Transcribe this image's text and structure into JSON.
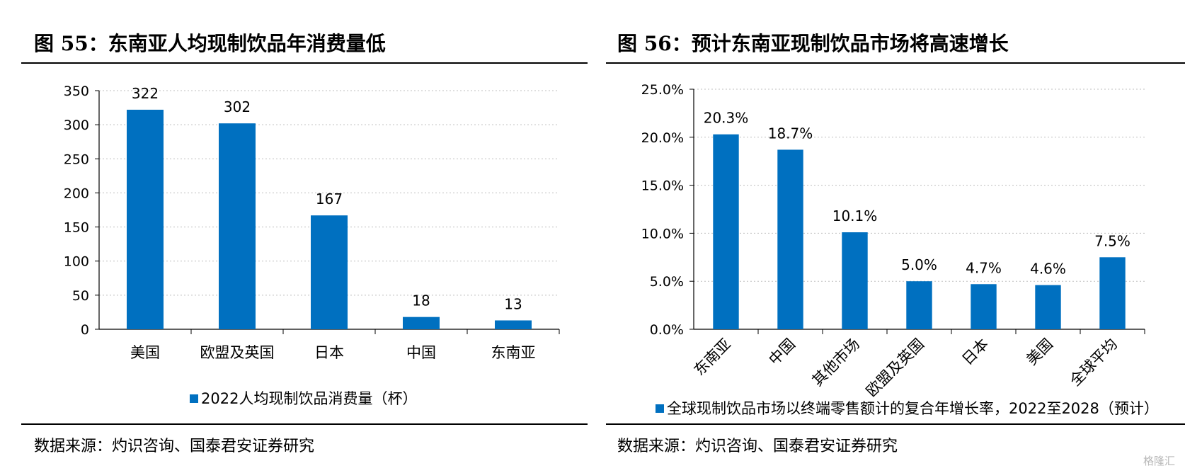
{
  "left_panel": {
    "title": "图 55：东南亚人均现制饮品年消费量低",
    "source": "数据来源：灼识咨询、国泰君安证券研究"
  },
  "right_panel": {
    "title": "图 56：预计东南亚现制饮品市场将高速增长",
    "source": "数据来源：灼识咨询、国泰君安证券研究"
  },
  "watermark": "格隆汇",
  "colors": {
    "bar": "#0070C0",
    "grid": "#BFBFBF",
    "rule": "#000000"
  },
  "chart_data": [
    {
      "type": "bar",
      "title": "",
      "categories": [
        "美国",
        "欧盟及英国",
        "日本",
        "中国",
        "东南亚"
      ],
      "series": [
        {
          "name": "2022人均现制饮品消费量（杯）",
          "values": [
            322,
            302,
            167,
            18,
            13
          ]
        }
      ],
      "data_labels": [
        "322",
        "302",
        "167",
        "18",
        "13"
      ],
      "yticks": [
        "0",
        "50",
        "100",
        "150",
        "200",
        "250",
        "300",
        "350"
      ],
      "ylim": [
        0,
        350
      ],
      "grid": true,
      "legend": "bottom"
    },
    {
      "type": "bar",
      "title": "",
      "categories": [
        "东南亚",
        "中国",
        "其他市场",
        "欧盟及英国",
        "日本",
        "美国",
        "全球平均"
      ],
      "series": [
        {
          "name": "全球现制饮品市场以终端零售额计的复合年增长率，2022至2028（预计）",
          "values": [
            20.3,
            18.7,
            10.1,
            5.0,
            4.7,
            4.6,
            7.5
          ]
        }
      ],
      "data_labels": [
        "20.3%",
        "18.7%",
        "10.1%",
        "5.0%",
        "4.7%",
        "4.6%",
        "7.5%"
      ],
      "yticks": [
        "0.0%",
        "5.0%",
        "10.0%",
        "15.0%",
        "20.0%",
        "25.0%"
      ],
      "ylim": [
        0,
        25
      ],
      "grid": true,
      "legend": "bottom"
    }
  ]
}
